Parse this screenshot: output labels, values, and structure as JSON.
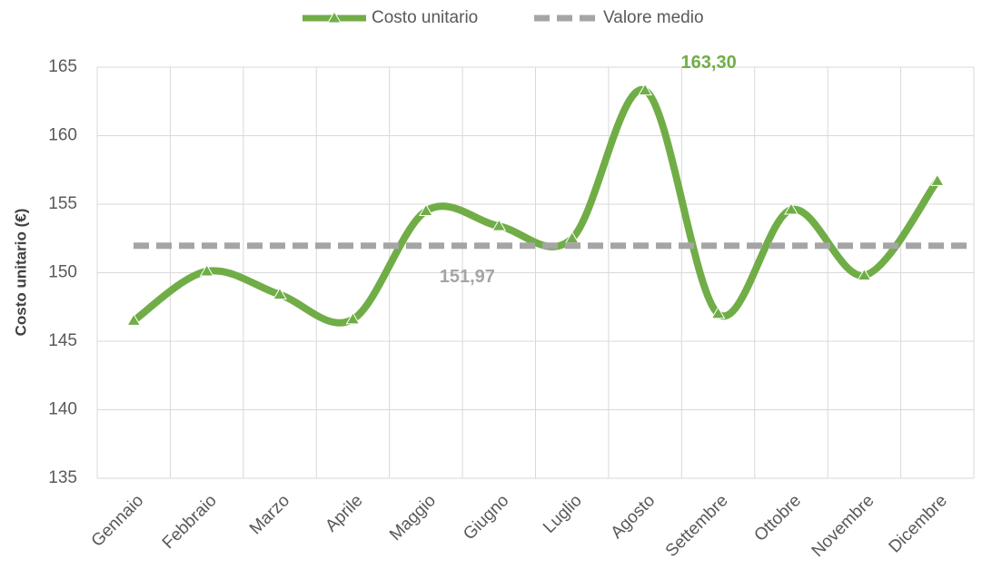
{
  "chart_data": {
    "type": "line",
    "y_label": "Costo unitario (€)",
    "categories": [
      "Gennaio",
      "Febbraio",
      "Marzo",
      "Aprile",
      "Maggio",
      "Giugno",
      "Luglio",
      "Agosto",
      "Settembre",
      "Ottobre",
      "Novembre",
      "Dicembre"
    ],
    "series": [
      {
        "name": "Costo unitario",
        "color": "#70ad47",
        "smooth": true,
        "values": [
          146.5,
          150.1,
          148.4,
          146.6,
          154.5,
          153.4,
          152.5,
          163.3,
          147.0,
          154.6,
          149.8,
          156.7
        ],
        "value_labels": [
          null,
          null,
          null,
          null,
          null,
          null,
          null,
          "163,30",
          null,
          null,
          null,
          null
        ]
      },
      {
        "name": "Valore medio",
        "color": "#a5a5a5",
        "dashed": true,
        "values": [
          151.97,
          151.97,
          151.97,
          151.97,
          151.97,
          151.97,
          151.97,
          151.97,
          151.97,
          151.97,
          151.97,
          151.97
        ],
        "value_labels": [
          null,
          null,
          null,
          null,
          null,
          "151,97",
          null,
          null,
          null,
          null,
          null,
          null
        ]
      }
    ],
    "ylim": [
      135,
      165
    ],
    "yticks": [
      135,
      140,
      145,
      150,
      155,
      160,
      165
    ],
    "grid": true,
    "legend": "top"
  }
}
